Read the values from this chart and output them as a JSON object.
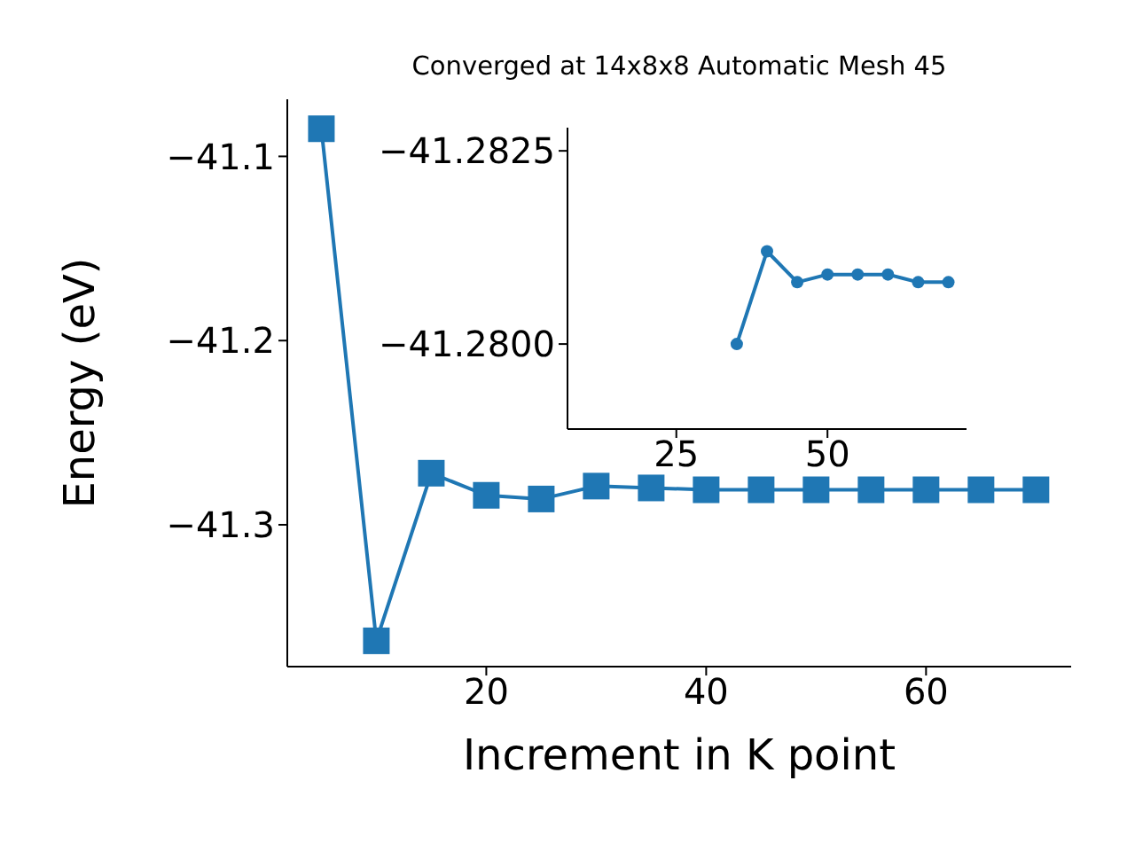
{
  "chart_data": [
    {
      "type": "line",
      "title": "Converged at 14x8x8 Automatic Mesh 45",
      "xlabel": "Increment in K point",
      "ylabel": "Energy (eV)",
      "marker": "square",
      "x": [
        5,
        10,
        15,
        20,
        25,
        30,
        35,
        40,
        45,
        50,
        55,
        60,
        65,
        70
      ],
      "series": [
        {
          "color": "#1f77b4",
          "values": [
            -41.085,
            -41.363,
            -41.272,
            -41.284,
            -41.286,
            -41.279,
            -41.28,
            -41.281,
            -41.281,
            -41.281,
            -41.281,
            -41.281,
            -41.281,
            -41.281
          ]
        }
      ],
      "xlim": [
        1.9,
        73.2
      ],
      "ylim": [
        -41.377,
        -41.069
      ],
      "xticks": [
        20,
        40,
        60
      ],
      "yticks": [
        {
          "value": -41.1,
          "label": "−41.1"
        },
        {
          "value": -41.2,
          "label": "−41.2"
        },
        {
          "value": -41.3,
          "label": "−41.3"
        }
      ]
    },
    {
      "type": "line",
      "marker": "circle",
      "x": [
        35,
        40,
        45,
        50,
        55,
        60,
        65,
        70
      ],
      "series": [
        {
          "color": "#1f77b4",
          "values": [
            -41.28,
            -41.2812,
            -41.2808,
            -41.2809,
            -41.2809,
            -41.2809,
            -41.2808,
            -41.2808
          ]
        }
      ],
      "xlim": [
        7,
        73
      ],
      "ylim": [
        -41.2789,
        -41.2828
      ],
      "xticks": [
        25,
        50
      ],
      "yticks": [
        {
          "value": -41.2825,
          "label": "−41.2825"
        },
        {
          "value": -41.28,
          "label": "−41.2800"
        }
      ]
    }
  ]
}
